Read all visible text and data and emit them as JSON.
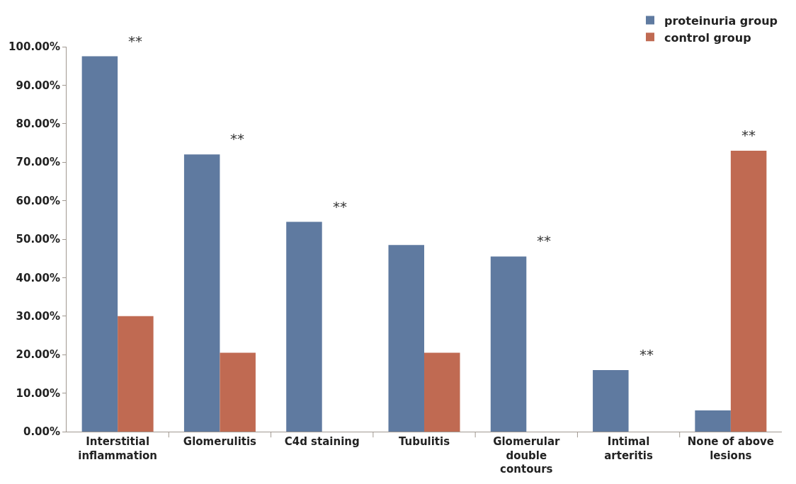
{
  "chart_data": {
    "type": "bar",
    "categories": [
      "Interstitial inflammation",
      "Glomerulitis",
      "C4d staining",
      "Tubulitis",
      "Glomerular double contours",
      "Intimal arteritis",
      "None of above lesions"
    ],
    "series": [
      {
        "name": "proteinuria group",
        "color": "#5f7aa0",
        "values": [
          97.5,
          72,
          54.5,
          48.5,
          45.5,
          16,
          5.5
        ]
      },
      {
        "name": "control group",
        "color": "#c06a52",
        "values": [
          30,
          20.5,
          0,
          20.5,
          0,
          0,
          73
        ]
      }
    ],
    "ylim": [
      0,
      100
    ],
    "yticks": [
      {
        "value": 0,
        "label": "0.00%"
      },
      {
        "value": 10,
        "label": "10.00%"
      },
      {
        "value": 20,
        "label": "20.00%"
      },
      {
        "value": 30,
        "label": "30.00%"
      },
      {
        "value": 40,
        "label": "40.00%"
      },
      {
        "value": 50,
        "label": "50.00%"
      },
      {
        "value": 60,
        "label": "60.00%"
      },
      {
        "value": 70,
        "label": "70.00%"
      },
      {
        "value": 80,
        "label": "80.00%"
      },
      {
        "value": 90,
        "label": "90.00%"
      },
      {
        "value": 100,
        "label": "100.00%"
      }
    ],
    "annotations": [
      {
        "text": "**",
        "x": "Interstitial inflammation",
        "y": 97.5
      },
      {
        "text": "**",
        "x": "Glomerulitis",
        "y": 72
      },
      {
        "text": "**",
        "x": "C4d staining",
        "y": 54.5
      },
      {
        "text": "**",
        "x": "Glomerular double contours",
        "y": 45.5
      },
      {
        "text": "**",
        "x": "Intimal arteritis",
        "y": 16
      },
      {
        "text": "**",
        "x": "None of above lesions",
        "y": 73
      }
    ],
    "legend": "top right"
  }
}
